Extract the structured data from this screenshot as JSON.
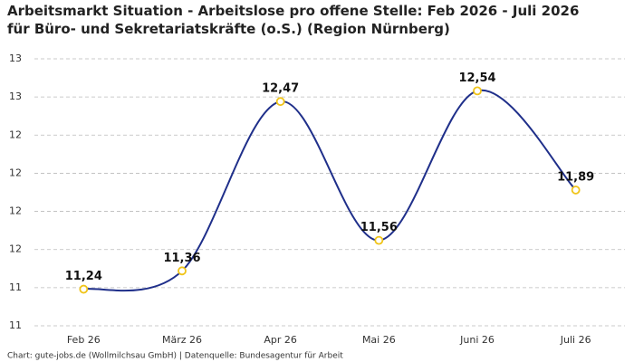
{
  "chart_data": {
    "type": "line",
    "title": "Arbeitsmarkt Situation - Arbeitslose pro offene Stelle: Feb 2026 - Juli 2026 für Büro- und Sekretariatskräfte (o.S.) (Region Nürnberg)",
    "source": "Chart: gute-jobs.de (Wollmilchsau GmbH) | Datenquelle: Bundesagentur für Arbeit",
    "categories": [
      "Feb 26",
      "März 26",
      "Apr 26",
      "Mai 26",
      "Juni 26",
      "Juli 26"
    ],
    "values": [
      11.24,
      11.36,
      12.47,
      11.56,
      12.54,
      11.89
    ],
    "value_labels": [
      "11,24",
      "11,36",
      "12,47",
      "11,56",
      "12,54",
      "11,89"
    ],
    "color": "#1f2f8a",
    "marker_color": "#f0c419",
    "ylim": [
      11,
      12.75
    ],
    "yticks": [
      {
        "value": 11,
        "label": "11"
      },
      {
        "value": 11.25,
        "label": "11"
      },
      {
        "value": 11.5,
        "label": "12"
      },
      {
        "value": 11.75,
        "label": "12"
      },
      {
        "value": 12,
        "label": "12"
      },
      {
        "value": 12.25,
        "label": "12"
      },
      {
        "value": 12.5,
        "label": "13"
      },
      {
        "value": 12.75,
        "label": "13"
      }
    ],
    "grid": true
  }
}
